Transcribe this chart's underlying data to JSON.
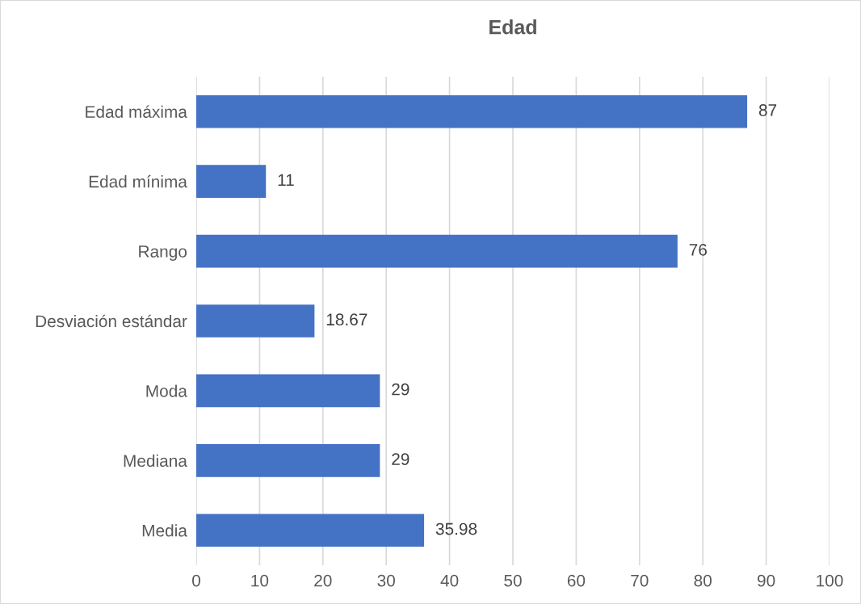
{
  "chart_data": {
    "type": "bar",
    "orientation": "horizontal",
    "title": "Edad",
    "categories": [
      "Edad máxima",
      "Edad mínima",
      "Rango",
      "Desviación estándar",
      "Moda",
      "Mediana",
      "Media"
    ],
    "values": [
      87,
      11,
      76,
      18.67,
      29,
      29,
      35.98
    ],
    "color": "#4472c4",
    "xlim": [
      0,
      100
    ],
    "xticks": [
      0,
      10,
      20,
      30,
      40,
      50,
      60,
      70,
      80,
      90,
      100
    ],
    "grid": "x",
    "data_labels": true
  }
}
